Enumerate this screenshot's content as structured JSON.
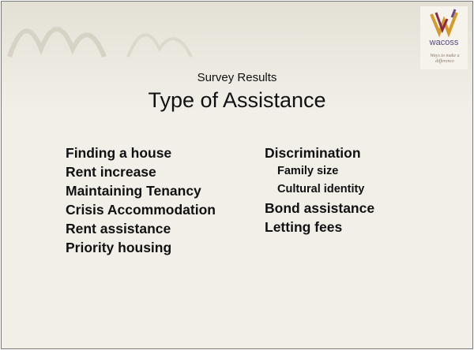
{
  "logo": {
    "name": "wacoss",
    "tagline": "Ways to make a difference"
  },
  "header": {
    "subtitle": "Survey Results",
    "title": "Type of Assistance"
  },
  "left_column": [
    "Finding a house",
    "Rent increase",
    "Maintaining Tenancy",
    "Crisis Accommodation",
    "Rent assistance",
    "Priority housing"
  ],
  "right_column": [
    {
      "label": "Discrimination",
      "subitems": [
        "Family size",
        "Cultural identity"
      ]
    },
    {
      "label": "Bond assistance",
      "subitems": []
    },
    {
      "label": "Letting fees",
      "subitems": []
    }
  ]
}
